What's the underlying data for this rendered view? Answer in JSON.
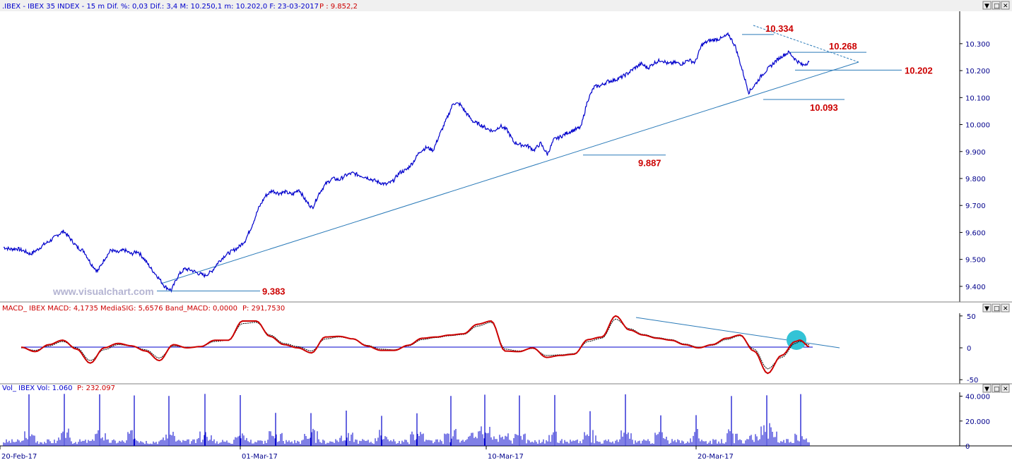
{
  "header": {
    "price_info": ".IBEX - IBEX 35 INDEX - 15 m  Dif. %: 0,03  Dif.: 3,4  M: 10.250,1  m: 10.202,0  F: 23-03-2017",
    "price_p": "P : 9.852,2",
    "macd_info": "MACD_ IBEX MACD: 4,1735  MediaSIG: 5,6576  Band_MACD: 0,0000",
    "macd_p": "P: 291,7530",
    "vol_info": "Vol_ IBEX Vol: 1.060",
    "vol_p": "P: 232.097"
  },
  "window_buttons": [
    "▼",
    "□",
    "✕"
  ],
  "watermark": "www.visualchart.com",
  "colors": {
    "price": "#0000cc",
    "macd": "#cc0000",
    "signal": "#000000",
    "trend": "#2a7ab8",
    "label": "#cc0000",
    "axis": "#00008b",
    "highlight": "#33c3d6"
  },
  "chart_data": [
    {
      "type": "line",
      "panel": "price",
      "ylim": [
        9350,
        10420
      ],
      "yticks": [
        "9.400",
        "9.500",
        "9.600",
        "9.700",
        "9.800",
        "9.900",
        "10.000",
        "10.100",
        "10.200",
        "10.300"
      ],
      "x_labels": [
        "20-Feb-17",
        "01-Mar-17",
        "10-Mar-17",
        "20-Mar-17"
      ],
      "series": [
        {
          "points": [
            [
              0,
              9545
            ],
            [
              1,
              9538
            ],
            [
              2,
              9540
            ],
            [
              3,
              9532
            ],
            [
              4,
              9520
            ],
            [
              5,
              9535
            ],
            [
              6,
              9555
            ],
            [
              7,
              9570
            ],
            [
              8,
              9590
            ],
            [
              9,
              9605
            ],
            [
              10,
              9575
            ],
            [
              11,
              9545
            ],
            [
              12,
              9530
            ],
            [
              13,
              9485
            ],
            [
              14,
              9455
            ],
            [
              15,
              9500
            ],
            [
              16,
              9535
            ],
            [
              17,
              9525
            ],
            [
              18,
              9535
            ],
            [
              19,
              9520
            ],
            [
              20,
              9530
            ],
            [
              21,
              9500
            ],
            [
              22,
              9465
            ],
            [
              23,
              9435
            ],
            [
              24,
              9400
            ],
            [
              25,
              9385
            ],
            [
              26,
              9440
            ],
            [
              27,
              9465
            ],
            [
              28,
              9460
            ],
            [
              29,
              9448
            ],
            [
              30,
              9440
            ],
            [
              31,
              9455
            ],
            [
              32,
              9490
            ],
            [
              33,
              9515
            ],
            [
              34,
              9530
            ],
            [
              35,
              9545
            ],
            [
              36,
              9570
            ],
            [
              37,
              9625
            ],
            [
              38,
              9690
            ],
            [
              39,
              9735
            ],
            [
              40,
              9755
            ],
            [
              41,
              9745
            ],
            [
              42,
              9750
            ],
            [
              43,
              9740
            ],
            [
              44,
              9760
            ],
            [
              45,
              9718
            ],
            [
              46,
              9690
            ],
            [
              47,
              9745
            ],
            [
              48,
              9780
            ],
            [
              49,
              9800
            ],
            [
              50,
              9795
            ],
            [
              51,
              9812
            ],
            [
              52,
              9820
            ],
            [
              53,
              9812
            ],
            [
              54,
              9805
            ],
            [
              55,
              9795
            ],
            [
              56,
              9785
            ],
            [
              57,
              9778
            ],
            [
              58,
              9790
            ],
            [
              59,
              9822
            ],
            [
              60,
              9832
            ],
            [
              61,
              9860
            ],
            [
              62,
              9900
            ],
            [
              63,
              9915
            ],
            [
              64,
              9905
            ],
            [
              65,
              9965
            ],
            [
              66,
              10020
            ],
            [
              67,
              10080
            ],
            [
              68,
              10075
            ],
            [
              69,
              10040
            ],
            [
              70,
              10010
            ],
            [
              71,
              10000
            ],
            [
              72,
              9985
            ],
            [
              73,
              9975
            ],
            [
              74,
              9995
            ],
            [
              75,
              9980
            ],
            [
              76,
              9935
            ],
            [
              77,
              9925
            ],
            [
              78,
              9922
            ],
            [
              79,
              9905
            ],
            [
              80,
              9930
            ],
            [
              81,
              9890
            ],
            [
              82,
              9945
            ],
            [
              83,
              9955
            ],
            [
              84,
              9970
            ],
            [
              85,
              9980
            ],
            [
              86,
              9990
            ],
            [
              87,
              10090
            ],
            [
              88,
              10140
            ],
            [
              89,
              10145
            ],
            [
              90,
              10160
            ],
            [
              91,
              10165
            ],
            [
              92,
              10175
            ],
            [
              93,
              10190
            ],
            [
              94,
              10210
            ],
            [
              95,
              10225
            ],
            [
              96,
              10210
            ],
            [
              97,
              10230
            ],
            [
              98,
              10240
            ],
            [
              99,
              10225
            ],
            [
              100,
              10230
            ],
            [
              101,
              10225
            ],
            [
              102,
              10240
            ],
            [
              103,
              10230
            ],
            [
              104,
              10295
            ],
            [
              105,
              10310
            ],
            [
              106,
              10315
            ],
            [
              107,
              10320
            ],
            [
              108,
              10334
            ],
            [
              109,
              10290
            ],
            [
              110,
              10205
            ],
            [
              111,
              10120
            ],
            [
              112,
              10150
            ],
            [
              113,
              10185
            ],
            [
              114,
              10210
            ],
            [
              115,
              10235
            ],
            [
              116,
              10255
            ],
            [
              117,
              10268
            ],
            [
              118,
              10240
            ],
            [
              119,
              10220
            ],
            [
              120,
              10232
            ]
          ]
        }
      ],
      "levels": [
        {
          "label": "10.334",
          "value": 10334
        },
        {
          "label": "10.268",
          "value": 10268
        },
        {
          "label": "10.202",
          "value": 10202
        },
        {
          "label": "10.093",
          "value": 10093
        },
        {
          "label": "9.887",
          "value": 9887
        },
        {
          "label": "9.383",
          "value": 9383
        }
      ]
    },
    {
      "type": "line",
      "panel": "macd",
      "ylim": [
        -52,
        52
      ],
      "yticks": [
        "50",
        "0",
        "-50"
      ],
      "series": [
        {
          "points": [
            [
              0,
              1
            ],
            [
              3,
              -6
            ],
            [
              6,
              5
            ],
            [
              9,
              12
            ],
            [
              12,
              -2
            ],
            [
              15,
              -24
            ],
            [
              18,
              0
            ],
            [
              21,
              7
            ],
            [
              24,
              3
            ],
            [
              27,
              -5
            ],
            [
              30,
              -20
            ],
            [
              33,
              5
            ],
            [
              36,
              0
            ],
            [
              39,
              2
            ],
            [
              42,
              12
            ],
            [
              45,
              12
            ],
            [
              48,
              42
            ],
            [
              51,
              42
            ],
            [
              54,
              18
            ],
            [
              57,
              5
            ],
            [
              60,
              0
            ],
            [
              63,
              -8
            ],
            [
              66,
              17
            ],
            [
              69,
              18
            ],
            [
              72,
              14
            ],
            [
              75,
              3
            ],
            [
              78,
              -4
            ],
            [
              81,
              -4
            ],
            [
              84,
              4
            ],
            [
              87,
              15
            ],
            [
              90,
              17
            ],
            [
              93,
              20
            ],
            [
              96,
              22
            ],
            [
              99,
              37
            ],
            [
              102,
              42
            ],
            [
              105,
              -5
            ],
            [
              108,
              -6
            ],
            [
              111,
              0
            ],
            [
              114,
              -15
            ],
            [
              117,
              -12
            ],
            [
              120,
              -10
            ],
            [
              123,
              13
            ],
            [
              126,
              17
            ],
            [
              129,
              50
            ],
            [
              132,
              28
            ],
            [
              135,
              20
            ],
            [
              138,
              15
            ],
            [
              141,
              12
            ],
            [
              144,
              5
            ],
            [
              147,
              0
            ],
            [
              150,
              5
            ],
            [
              153,
              15
            ],
            [
              156,
              20
            ],
            [
              159,
              -5
            ],
            [
              162,
              -40
            ],
            [
              165,
              -12
            ],
            [
              168,
              10
            ],
            [
              169,
              12
            ],
            [
              171,
              2
            ]
          ]
        },
        {
          "points": [
            [
              0,
              0
            ],
            [
              3,
              -4
            ],
            [
              6,
              3
            ],
            [
              9,
              10
            ],
            [
              12,
              0
            ],
            [
              15,
              -20
            ],
            [
              18,
              -3
            ],
            [
              21,
              5
            ],
            [
              24,
              3
            ],
            [
              27,
              -3
            ],
            [
              30,
              -16
            ],
            [
              33,
              3
            ],
            [
              36,
              1
            ],
            [
              39,
              2
            ],
            [
              42,
              10
            ],
            [
              45,
              12
            ],
            [
              48,
              38
            ],
            [
              51,
              40
            ],
            [
              54,
              20
            ],
            [
              57,
              7
            ],
            [
              60,
              2
            ],
            [
              63,
              -5
            ],
            [
              66,
              14
            ],
            [
              69,
              17
            ],
            [
              72,
              14
            ],
            [
              75,
              4
            ],
            [
              78,
              -2
            ],
            [
              81,
              -3
            ],
            [
              84,
              3
            ],
            [
              87,
              13
            ],
            [
              90,
              16
            ],
            [
              93,
              19
            ],
            [
              96,
              21
            ],
            [
              99,
              34
            ],
            [
              102,
              40
            ],
            [
              105,
              -2
            ],
            [
              108,
              -5
            ],
            [
              111,
              -1
            ],
            [
              114,
              -12
            ],
            [
              117,
              -11
            ],
            [
              120,
              -9
            ],
            [
              123,
              10
            ],
            [
              126,
              15
            ],
            [
              129,
              45
            ],
            [
              132,
              30
            ],
            [
              135,
              21
            ],
            [
              138,
              16
            ],
            [
              141,
              13
            ],
            [
              144,
              6
            ],
            [
              147,
              1
            ],
            [
              150,
              4
            ],
            [
              153,
              13
            ],
            [
              156,
              19
            ],
            [
              159,
              -2
            ],
            [
              162,
              -33
            ],
            [
              165,
              -15
            ],
            [
              168,
              7
            ],
            [
              169,
              10
            ],
            [
              171,
              5
            ]
          ]
        }
      ]
    },
    {
      "type": "bar",
      "panel": "volume",
      "ylim": [
        0,
        42000
      ],
      "yticks": [
        "40.000",
        "20.000",
        "0"
      ]
    }
  ]
}
